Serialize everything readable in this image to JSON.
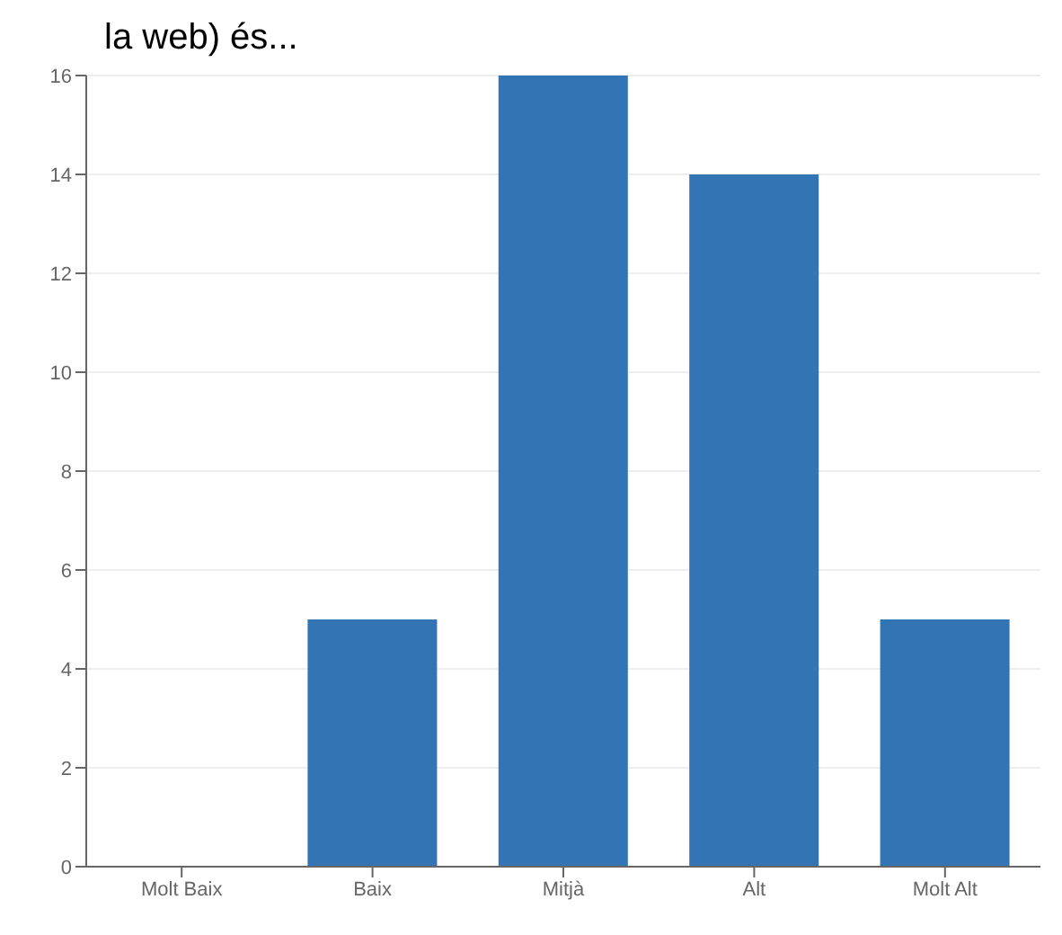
{
  "chart_data": {
    "type": "bar",
    "title": "la web) és...",
    "categories": [
      "Molt Baix",
      "Baix",
      "Mitjà",
      "Alt",
      "Molt Alt"
    ],
    "values": [
      0,
      5,
      16,
      14,
      5
    ],
    "color": "#3274b4",
    "ylim": [
      0,
      16
    ],
    "yticks": [
      0,
      2,
      4,
      6,
      8,
      10,
      12,
      14,
      16
    ],
    "grid": "y"
  }
}
